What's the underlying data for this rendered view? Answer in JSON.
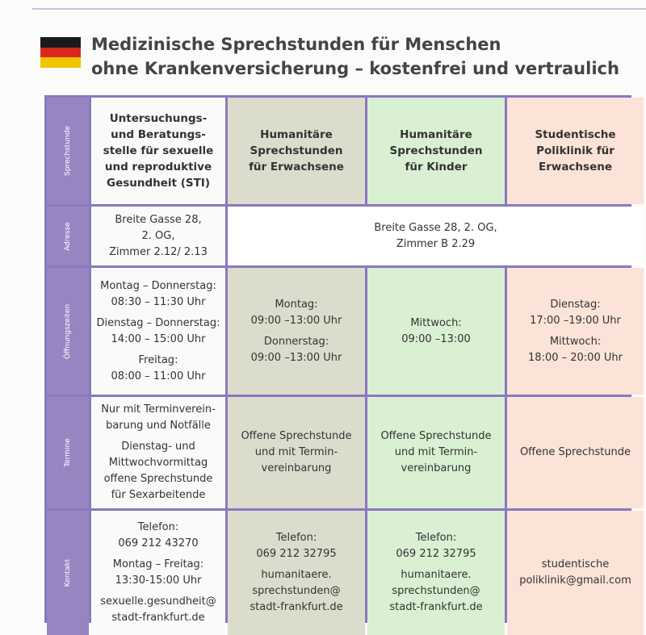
{
  "title": {
    "line1": "Medizinische Sprechstunden für Menschen",
    "line2": "ohne Krankenversicherung – kostenfrei und vertraulich"
  },
  "flag": {
    "colors": [
      "#1a1a1a",
      "#d8281e",
      "#f2c400"
    ]
  },
  "rows": [
    "Sprechstunde",
    "Adresse",
    "Öffnungszeiten",
    "Termine",
    "Kontakt"
  ],
  "columns": [
    {
      "header": [
        "Untersuchungs-",
        "und Beratungs-",
        "stelle für sexuelle",
        "und reproduktive",
        "Gesundheit (STI)"
      ],
      "address": [
        "Breite Gasse 28,",
        "2. OG,",
        "Zimmer 2.12/ 2.13"
      ],
      "hours": [
        [
          "Montag – Donnerstag:",
          "08:30 – 11:30 Uhr"
        ],
        [
          "Dienstag – Donnerstag:",
          "14:00 – 15:00 Uhr"
        ],
        [
          "Freitag:",
          "08:00 – 11:00 Uhr"
        ]
      ],
      "appointments": [
        [
          "Nur mit Terminverein-",
          "barung und Notfälle"
        ],
        [
          "Dienstag- und",
          "Mittwochvormittag",
          "offene Sprechstunde",
          "für Sexarbeitende"
        ]
      ],
      "contact": [
        [
          "Telefon:",
          "069 212 43270"
        ],
        [
          "Montag – Freitag:",
          "13:30-15:00 Uhr"
        ],
        [
          "sexuelle.gesundheit@",
          "stadt-frankfurt.de"
        ]
      ]
    },
    {
      "header": [
        "Humanitäre",
        "Sprechstunden",
        "für Erwachsene"
      ],
      "hours": [
        [
          "Montag:",
          "09:00 –13:00 Uhr"
        ],
        [
          "Donnerstag:",
          "09:00 –13:00 Uhr"
        ]
      ],
      "appointments": [
        [
          "Offene Sprechstunde",
          "und mit Termin-",
          "vereinbarung"
        ]
      ],
      "contact": [
        [
          "Telefon:",
          "069 212 32795"
        ],
        [
          "humanitaere.",
          "sprechstunden@",
          "stadt-frankfurt.de"
        ]
      ]
    },
    {
      "header": [
        "Humanitäre",
        "Sprechstunden",
        "für Kinder"
      ],
      "hours": [
        [
          "Mittwoch:",
          "09:00 –13:00"
        ]
      ],
      "appointments": [
        [
          "Offene Sprechstunde",
          "und mit Termin-",
          "vereinbarung"
        ]
      ],
      "contact": [
        [
          "Telefon:",
          "069 212 32795"
        ],
        [
          "humanitaere.",
          "sprechstunden@",
          "stadt-frankfurt.de"
        ]
      ]
    },
    {
      "header": [
        "Studentische",
        "Poliklinik für",
        "Erwachsene"
      ],
      "hours": [
        [
          "Dienstag:",
          "17:00 –19:00 Uhr"
        ],
        [
          "Mittwoch:",
          "18:00 – 20:00 Uhr"
        ]
      ],
      "appointments": [
        [
          "Offene Sprechstunde"
        ]
      ],
      "contact": [
        [
          "studentische",
          "poliklinik@gmail.com"
        ]
      ]
    }
  ],
  "shared_address": [
    "Breite Gasse 28, 2. OG,",
    "Zimmer B 2.29"
  ]
}
